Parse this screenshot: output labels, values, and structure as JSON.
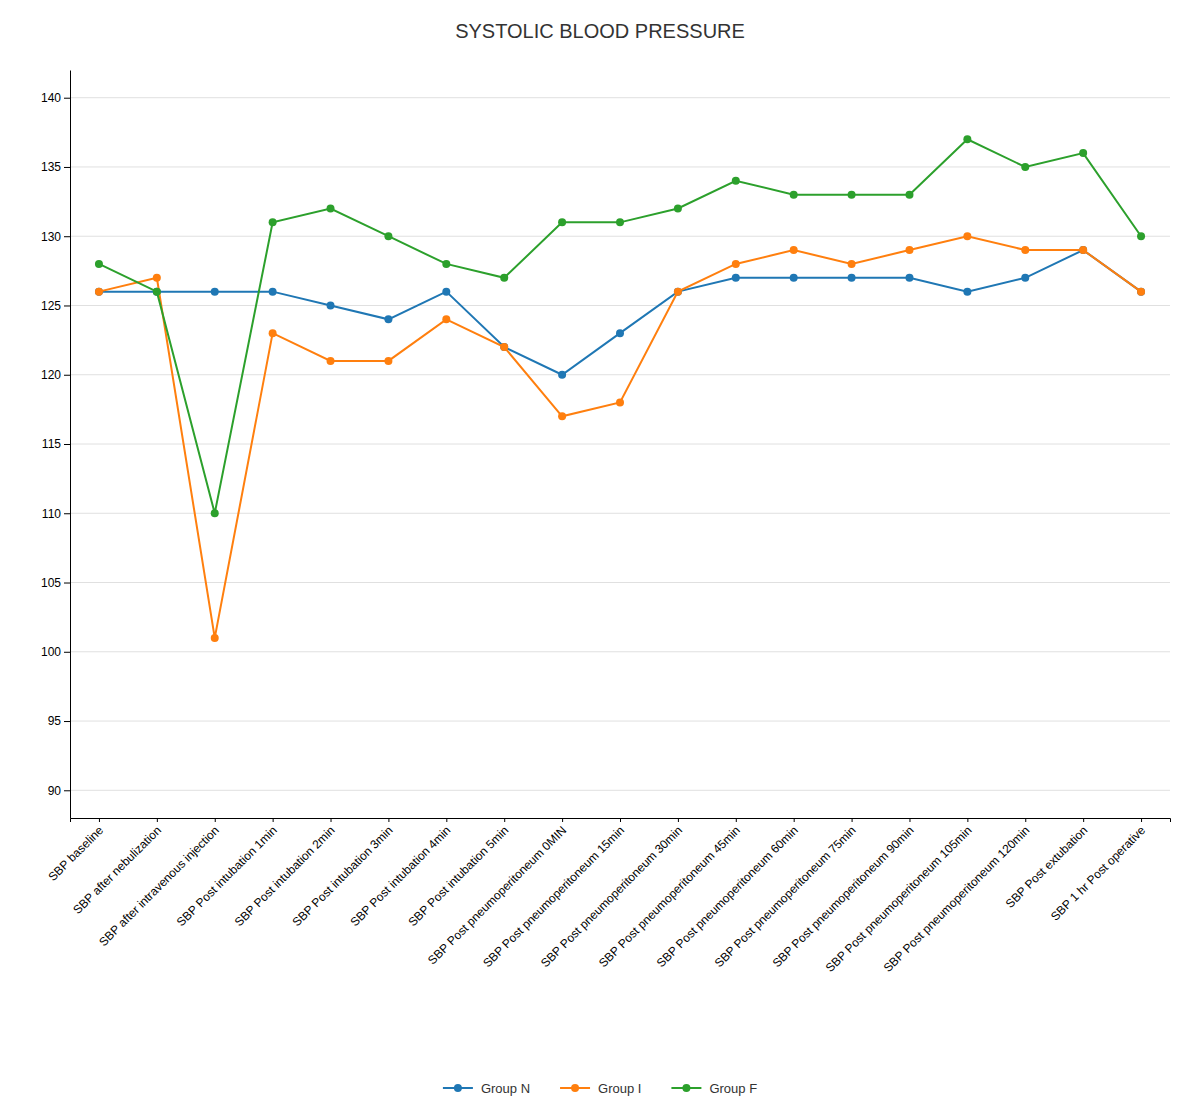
{
  "chart_data": {
    "type": "line",
    "title": "SYSTOLIC BLOOD PRESSURE",
    "categories": [
      "SBP baseline",
      "SBP after nebulization",
      "SBP after intravenous injection",
      "SBP Post intubation  1min",
      "SBP Post intubation 2min",
      "SBP Post intubation 3min",
      "SBP Post intubation 4min",
      "SBP Post intubation 5min",
      "SBP Post pneumoperitoneum 0MIN",
      "SBP Post pneumoperitoneum 15min",
      "SBP Post pneumoperitoneum 30min",
      "SBP Post pneumoperitoneum 45min",
      "SBP Post pneumoperitoneum 60min",
      "SBP Post pneumoperitoneum 75min",
      "SBP Post pneumoperitoneum 90min",
      "SBP Post pneumoperitoneum 105min",
      "SBP Post pneumoperitoneum 120min",
      "SBP Post extubation",
      "SBP 1 hr Post operative"
    ],
    "series": [
      {
        "name": "Group N",
        "values": [
          126,
          126,
          126,
          126,
          125,
          124,
          126,
          122,
          120,
          123,
          126,
          127,
          127,
          127,
          127,
          126,
          127,
          129,
          126
        ]
      },
      {
        "name": "Group I",
        "values": [
          126,
          127,
          101,
          123,
          121,
          121,
          124,
          122,
          117,
          118,
          126,
          128,
          129,
          128,
          129,
          130,
          129,
          129,
          126
        ]
      },
      {
        "name": "Group F",
        "values": [
          128,
          126,
          110,
          131,
          132,
          130,
          128,
          127,
          131,
          131,
          132,
          134,
          133,
          133,
          133,
          137,
          135,
          136,
          130
        ]
      }
    ],
    "ylim": [
      88,
      142
    ],
    "yticks": [
      90,
      95,
      100,
      105,
      110,
      115,
      120,
      125,
      130,
      135,
      140
    ],
    "grid": true,
    "legend": "bottom",
    "marker": "circle"
  }
}
